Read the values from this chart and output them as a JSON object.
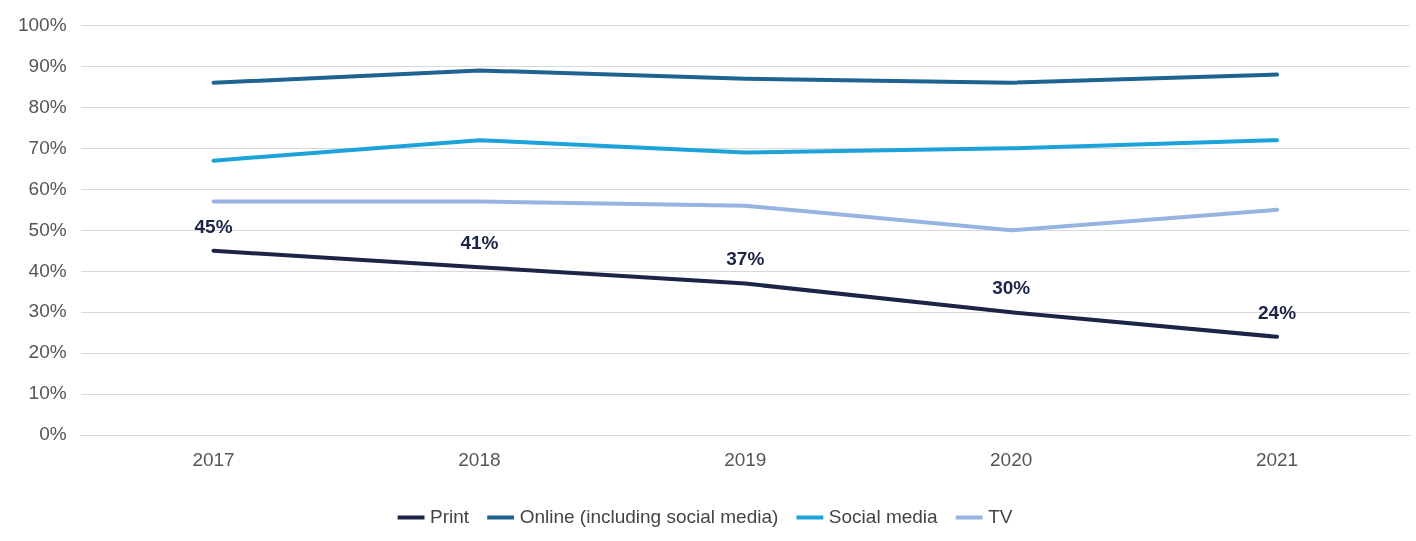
{
  "chart_data": {
    "type": "line",
    "categories": [
      "2017",
      "2018",
      "2019",
      "2020",
      "2021"
    ],
    "series": [
      {
        "name": "Print",
        "color": "#1c2447",
        "values": [
          45,
          41,
          37,
          30,
          24
        ],
        "value_labels": [
          "45%",
          "41%",
          "37%",
          "30%",
          "24%"
        ]
      },
      {
        "name": "Online (including social media)",
        "color": "#1f6391",
        "values": [
          86,
          89,
          87,
          86,
          88
        ]
      },
      {
        "name": "Social media",
        "color": "#1ba3da",
        "values": [
          67,
          72,
          69,
          70,
          72
        ]
      },
      {
        "name": "TV",
        "color": "#97b4e0",
        "values": [
          57,
          57,
          56,
          50,
          55
        ]
      }
    ],
    "ylim": [
      0,
      100
    ],
    "yticks": [
      {
        "value": 0,
        "label": "0%"
      },
      {
        "value": 10,
        "label": "10%"
      },
      {
        "value": 20,
        "label": "20%"
      },
      {
        "value": 30,
        "label": "30%"
      },
      {
        "value": 40,
        "label": "40%"
      },
      {
        "value": 50,
        "label": "50%"
      },
      {
        "value": 60,
        "label": "60%"
      },
      {
        "value": 70,
        "label": "70%"
      },
      {
        "value": 80,
        "label": "80%"
      },
      {
        "value": 90,
        "label": "90%"
      },
      {
        "value": 100,
        "label": "100%"
      }
    ],
    "grid": "y",
    "legend": "bottom",
    "marker": "none",
    "line_style": "solid"
  }
}
